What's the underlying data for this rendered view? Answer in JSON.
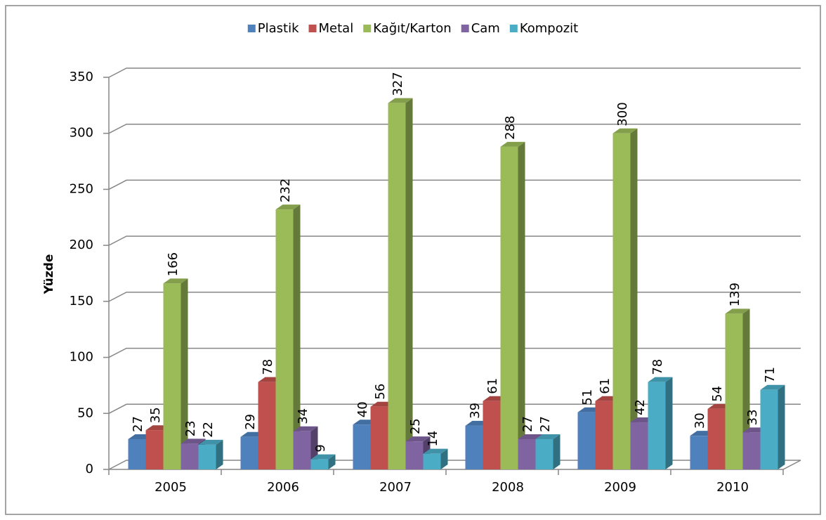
{
  "chart_data": {
    "type": "bar",
    "y_label": "Yüzde",
    "categories": [
      "2005",
      "2006",
      "2007",
      "2008",
      "2009",
      "2010"
    ],
    "series": [
      {
        "name": "Plastik",
        "color": "#4f81bd",
        "values": [
          27,
          29,
          40,
          39,
          51,
          30
        ]
      },
      {
        "name": "Metal",
        "color": "#c0504d",
        "values": [
          35,
          78,
          56,
          61,
          61,
          54
        ]
      },
      {
        "name": "Kağıt/Karton",
        "color": "#9bbb59",
        "values": [
          166,
          232,
          327,
          288,
          300,
          139
        ]
      },
      {
        "name": "Cam",
        "color": "#8064a2",
        "values": [
          23,
          34,
          25,
          27,
          42,
          33
        ]
      },
      {
        "name": "Kompozit",
        "color": "#4bacc6",
        "values": [
          22,
          9,
          14,
          27,
          78,
          71
        ]
      }
    ],
    "ylim": [
      0,
      350
    ],
    "yticks": [
      0,
      50,
      100,
      150,
      200,
      250,
      300,
      350
    ],
    "grid": true,
    "legend": "top"
  }
}
